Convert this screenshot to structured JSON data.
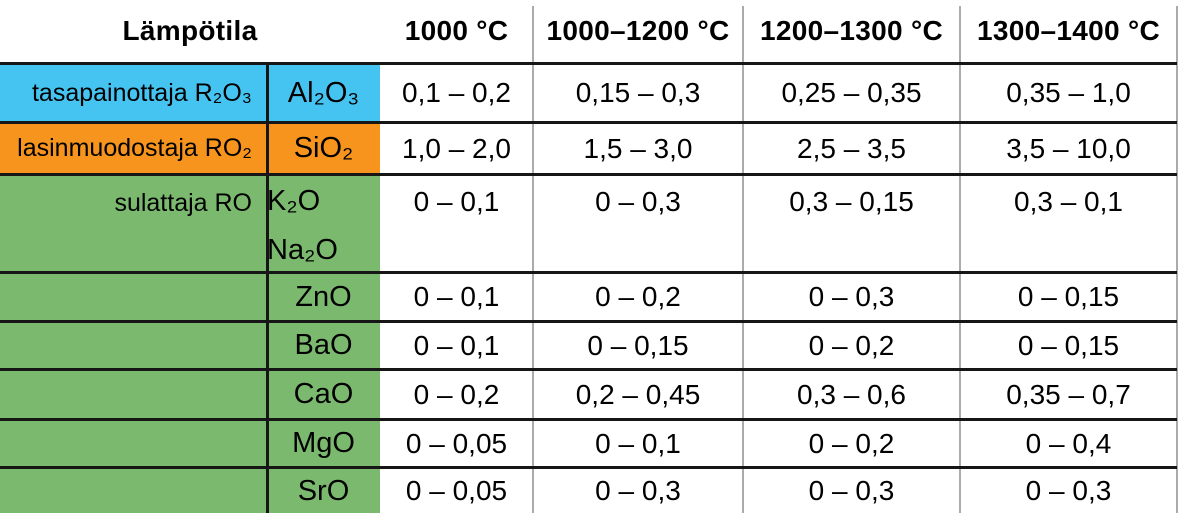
{
  "table": {
    "header": {
      "title": "Lämpötila",
      "temps": [
        "1000 °C",
        "1000–1200 °C",
        "1200–1300 °C",
        "1300–1400 °C"
      ]
    },
    "rows": [
      {
        "label": "tasapainottaja R₂O₃",
        "formula": "Al₂O₃",
        "values": [
          "0,1 – 0,2",
          "0,15 – 0,3",
          "0,25 – 0,35",
          "0,35 – 1,0"
        ]
      },
      {
        "label": "lasinmuodostaja RO₂",
        "formula": "SiO₂",
        "values": [
          "1,0 – 2,0",
          "1,5 – 3,0",
          "2,5 – 3,5",
          "3,5 – 10,0"
        ]
      },
      {
        "label": "sulattaja RO",
        "formula": "K₂O",
        "formula2": "Na₂O",
        "values": [
          "0 – 0,1",
          "0 – 0,3",
          "0,3 – 0,15",
          "0,3 – 0,1"
        ]
      },
      {
        "label": "",
        "formula": "ZnO",
        "values": [
          "0 – 0,1",
          "0 – 0,2",
          "0 – 0,3",
          "0 – 0,15"
        ]
      },
      {
        "label": "",
        "formula": "BaO",
        "values": [
          "0 – 0,1",
          "0 – 0,15",
          "0 – 0,2",
          "0 – 0,15"
        ]
      },
      {
        "label": "",
        "formula": "CaO",
        "values": [
          "0 – 0,2",
          "0,2 – 0,45",
          "0,3 – 0,6",
          "0,35 – 0,7"
        ]
      },
      {
        "label": "",
        "formula": "MgO",
        "values": [
          "0 – 0,05",
          "0 – 0,1",
          "0 – 0,2",
          "0 – 0,4"
        ]
      },
      {
        "label": "",
        "formula": "SrO",
        "values": [
          "0 – 0,05",
          "0 – 0,3",
          "0 – 0,3",
          "0 – 0,3"
        ]
      }
    ]
  },
  "colors": {
    "stabilizer_blue": "#45C4F1",
    "glass_former_orange": "#F6941E",
    "flux_green": "#7BBA6E",
    "grid_gray": "#ABABAB",
    "line_black": "#161616"
  }
}
